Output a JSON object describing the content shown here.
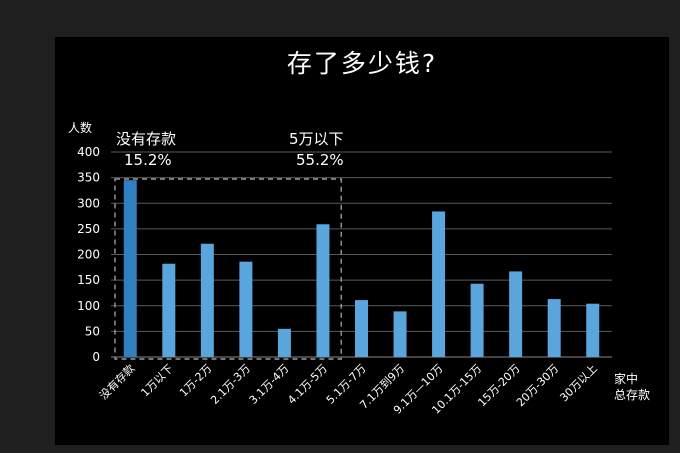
{
  "chart_data": {
    "type": "bar",
    "title": "存了多少钱?",
    "ylabel": "人数",
    "xlabel": "家中\n总存款",
    "ylim": [
      0,
      400
    ],
    "yticks": [
      0,
      50,
      100,
      150,
      200,
      250,
      300,
      350,
      400
    ],
    "categories": [
      "没有存款",
      "1万以下",
      "1万-2万",
      "2.1万-3万",
      "3.1万-4万",
      "4.1万-5万",
      "5.1万-7万",
      "7.1万到9万",
      "9.1万—10万",
      "10.1万-15万",
      "15万-20万",
      "20万-30万",
      "30万以上"
    ],
    "values": [
      345,
      182,
      221,
      186,
      55,
      259,
      111,
      89,
      284,
      143,
      167,
      113,
      104
    ],
    "annotations": [
      {
        "label": "没有存款",
        "value": "15.2%"
      },
      {
        "label": "5万以下",
        "value": "55.2%"
      }
    ],
    "colors": {
      "bar": "#5aa5dc",
      "first_bar": "#2f7fc1",
      "grid": "#5a5a5a",
      "text": "#ffffff",
      "dashed_box": "#9a9a9a"
    }
  }
}
